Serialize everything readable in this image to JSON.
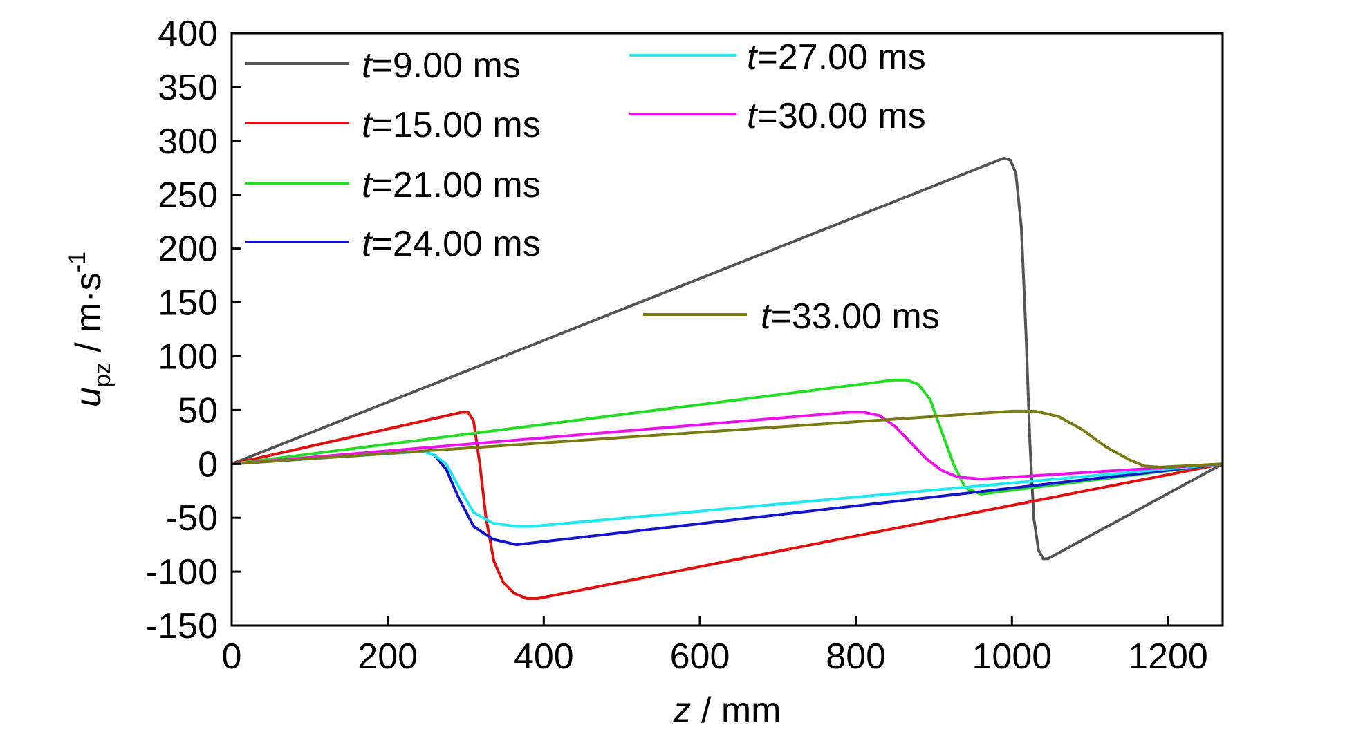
{
  "chart_data": {
    "type": "line",
    "xlabel": {
      "var": "z",
      "rest": " / mm"
    },
    "ylabel": {
      "var": "u",
      "sub": "pz",
      "rest": " / m·s",
      "sup": "-1"
    },
    "xlim": [
      0,
      1270
    ],
    "ylim": [
      -150,
      400
    ],
    "xticks": [
      0,
      200,
      400,
      600,
      800,
      1000,
      1200
    ],
    "yticks": [
      -150,
      -100,
      -50,
      0,
      50,
      100,
      150,
      200,
      250,
      300,
      350,
      400
    ],
    "grid": false,
    "legend_position": "inside, top",
    "series": [
      {
        "name": "t=9.00 ms",
        "var": "t",
        "label": "=9.00 ms",
        "color": "#555555",
        "x": [
          0,
          990,
          998,
          1005,
          1012,
          1018,
          1023,
          1028,
          1034,
          1040,
          1046,
          1270
        ],
        "y": [
          0,
          284,
          282,
          270,
          220,
          120,
          20,
          -50,
          -80,
          -88,
          -88,
          0
        ]
      },
      {
        "name": "t=15.00 ms",
        "var": "t",
        "label": "=15.00 ms",
        "color": "#e01010",
        "x": [
          0,
          295,
          303,
          310,
          318,
          326,
          336,
          348,
          362,
          378,
          392,
          1270
        ],
        "y": [
          0,
          48,
          48,
          40,
          0,
          -50,
          -90,
          -110,
          -120,
          -125,
          -125,
          0
        ]
      },
      {
        "name": "t=21.00 ms",
        "var": "t",
        "label": "=21.00 ms",
        "color": "#22dd22",
        "x": [
          0,
          850,
          865,
          880,
          895,
          910,
          925,
          940,
          960,
          1270
        ],
        "y": [
          0,
          78,
          78,
          74,
          60,
          30,
          0,
          -22,
          -28,
          0
        ]
      },
      {
        "name": "t=24.00 ms",
        "var": "t",
        "label": "=24.00 ms",
        "color": "#1515cc",
        "x": [
          0,
          230,
          245,
          260,
          275,
          290,
          310,
          335,
          365,
          1270
        ],
        "y": [
          0,
          11,
          12,
          8,
          -5,
          -30,
          -58,
          -70,
          -75,
          0
        ]
      },
      {
        "name": "t=27.00 ms",
        "var": "t",
        "label": "=27.00 ms",
        "color": "#20e8f0",
        "x": [
          0,
          230,
          245,
          260,
          275,
          290,
          310,
          335,
          365,
          385,
          1270
        ],
        "y": [
          0,
          11,
          12,
          8,
          0,
          -20,
          -45,
          -55,
          -58,
          -58,
          0
        ]
      },
      {
        "name": "t=30.00 ms",
        "var": "t",
        "label": "=30.00 ms",
        "color": "#ee11ee",
        "x": [
          0,
          790,
          810,
          830,
          850,
          870,
          890,
          910,
          930,
          960,
          1270
        ],
        "y": [
          0,
          48,
          48,
          45,
          35,
          20,
          5,
          -6,
          -12,
          -14,
          0
        ]
      },
      {
        "name": "t=33.00 ms",
        "var": "t",
        "label": "=33.00 ms",
        "color": "#7a7a12",
        "x": [
          0,
          1000,
          1030,
          1060,
          1090,
          1120,
          1150,
          1170,
          1190,
          1270
        ],
        "y": [
          0,
          49,
          49,
          44,
          32,
          16,
          4,
          -2,
          -3,
          0
        ]
      }
    ]
  }
}
